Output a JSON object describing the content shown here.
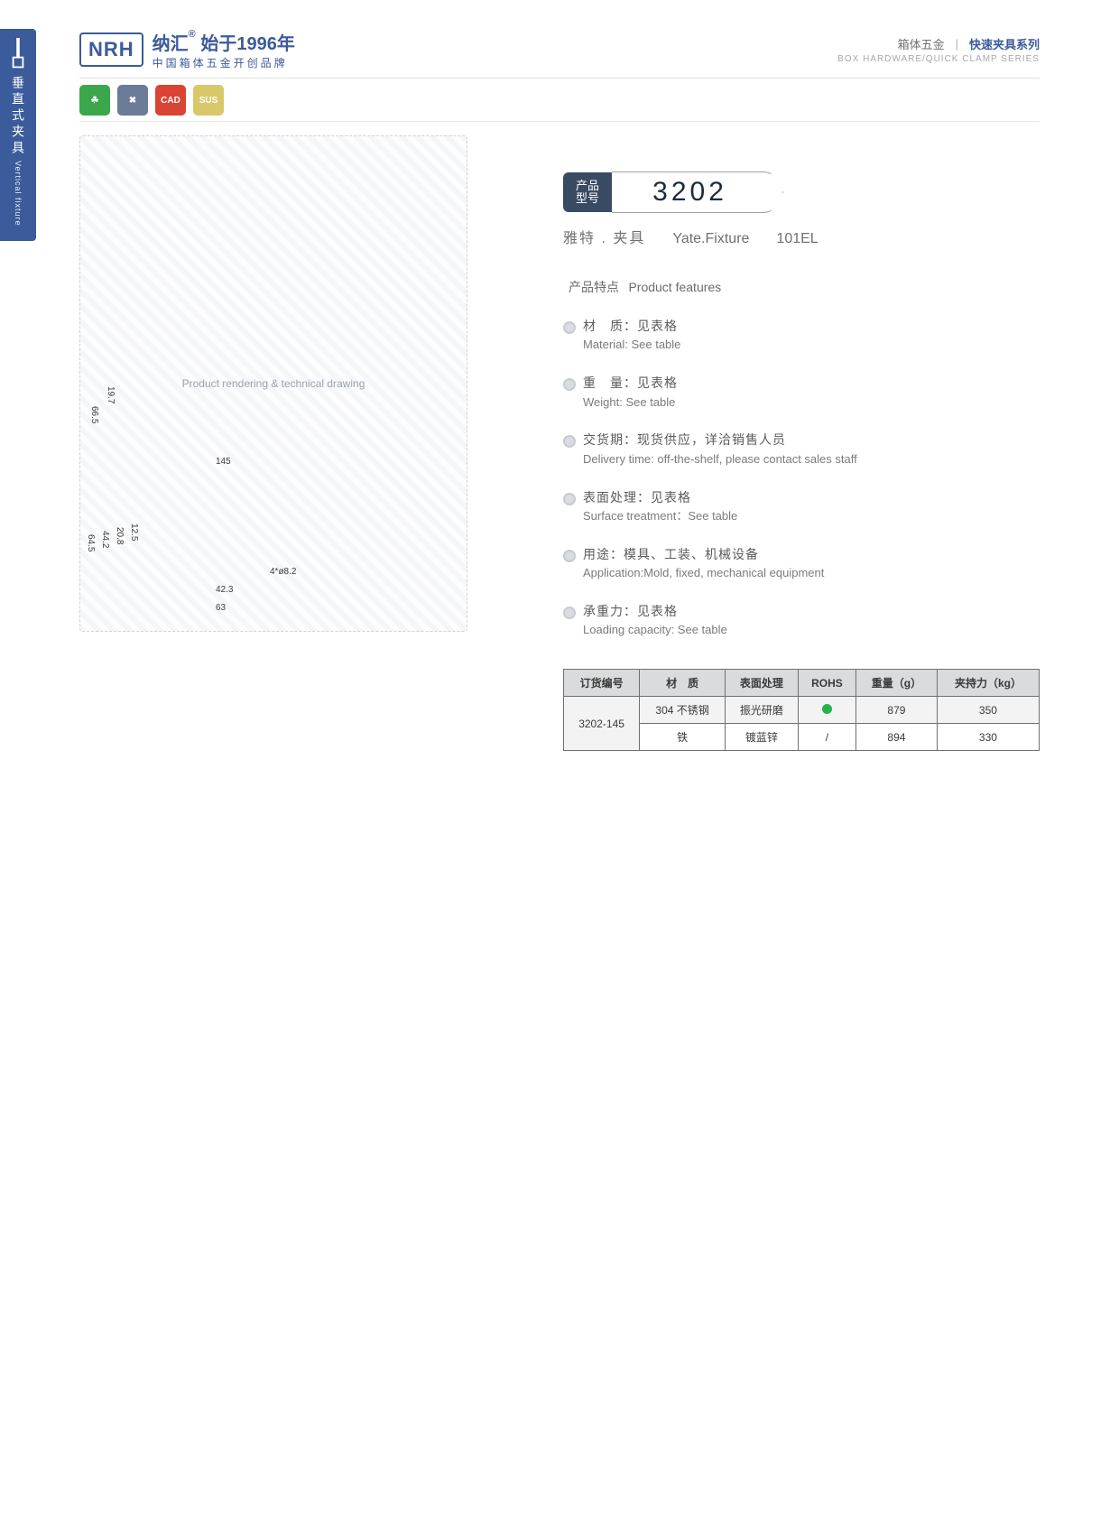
{
  "left_tab": {
    "cn": "垂直式夹具",
    "en": "Vertical fixture"
  },
  "header": {
    "logo": "NRH",
    "brand_cn": "纳汇",
    "brand_r": "®",
    "tagline": "始于1996年",
    "subline": "中国箱体五金开创品牌",
    "right": {
      "cn1": "箱体五金",
      "cn2": "快速夹具系列",
      "en": "BOX HARDWARE/QUICK CLAMP SERIES"
    }
  },
  "icons": [
    {
      "label": "eco",
      "bg": "#3aa84a",
      "glyph": "☘"
    },
    {
      "label": "tools",
      "bg": "#6b7b98",
      "glyph": "✖"
    },
    {
      "label": "CAD",
      "bg": "#d94434",
      "glyph": "CAD"
    },
    {
      "label": "SUS",
      "bg": "#d9c86a",
      "glyph": "SUS"
    }
  ],
  "drawing": {
    "caption": "Product rendering & technical drawing",
    "dims": {
      "d145": "145",
      "d66": "66.5",
      "d19": "19.7",
      "d64": "64.5",
      "d44": "44.2",
      "d20": "20.8",
      "d12": "12.5",
      "d42": "42.3",
      "d63": "63",
      "holes": "4*ø8.2"
    }
  },
  "badge": {
    "label_cn": "产品\n型号",
    "code": "3202"
  },
  "subtitle": {
    "s1": "雅特 . 夹具",
    "s2": "Yate.Fixture",
    "s3": "101EL"
  },
  "features": {
    "title_cn": "产品特点",
    "title_en": "Product features",
    "items": [
      {
        "cn": "材　质：见表格",
        "en": "Material: See table"
      },
      {
        "cn": "重　量：见表格",
        "en": "Weight: See table"
      },
      {
        "cn": "交货期：现货供应，详洽销售人员",
        "en": "Delivery time: off-the-shelf, please contact sales staff"
      },
      {
        "cn": "表面处理：见表格",
        "en": "Surface treatment：See table"
      },
      {
        "cn": "用途：模具、工装、机械设备",
        "en": "Application:Mold, fixed, mechanical equipment"
      },
      {
        "cn": "承重力：见表格",
        "en": "Loading capacity: See table"
      }
    ]
  },
  "table": {
    "headers": [
      "订货编号",
      "材　质",
      "表面处理",
      "ROHS",
      "重量（g）",
      "夹持力（kg）"
    ],
    "part_no": "3202-145",
    "rows": [
      {
        "mat": "304 不锈钢",
        "surf": "振光研磨",
        "rohs": "dot",
        "wt": "879",
        "cap": "350"
      },
      {
        "mat": "铁",
        "surf": "镀蓝锌",
        "rohs": "/",
        "wt": "894",
        "cap": "330"
      }
    ]
  },
  "colors": {
    "brand": "#3b5b9a",
    "badge_dark": "#394a63"
  }
}
